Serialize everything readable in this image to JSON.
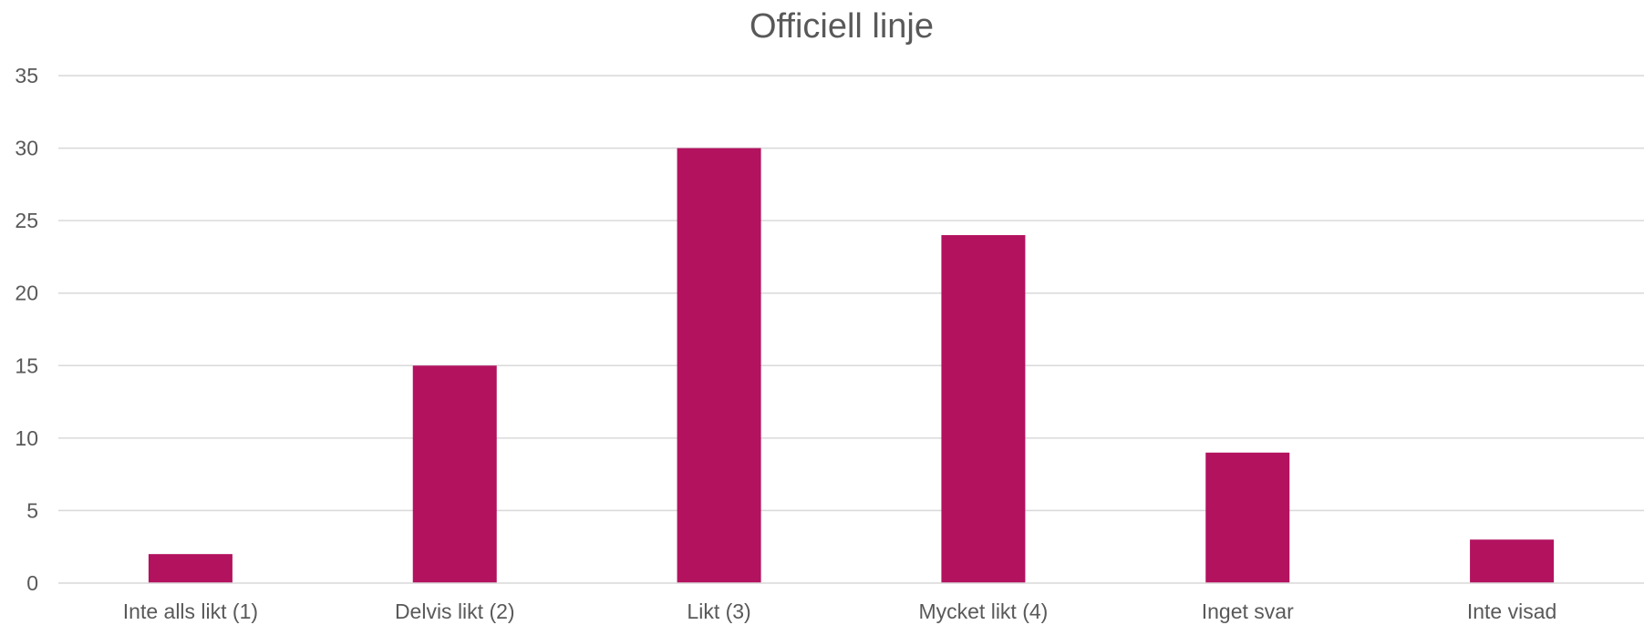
{
  "chart_data": {
    "type": "bar",
    "title": "Officiell linje",
    "categories": [
      "Inte alls likt (1)",
      "Delvis likt (2)",
      "Likt (3)",
      "Mycket likt (4)",
      "Inget svar",
      "Inte visad"
    ],
    "values": [
      2,
      15,
      30,
      24,
      9,
      3
    ],
    "xlabel": "",
    "ylabel": "",
    "ylim": [
      0,
      35
    ],
    "yticks": [
      "0",
      "5",
      "10",
      "15",
      "20",
      "25",
      "30",
      "35"
    ],
    "grid": true,
    "legend": "none",
    "bar_color": "#b3125f",
    "grid_color": "#d9d9d9",
    "text_color": "#595959"
  }
}
